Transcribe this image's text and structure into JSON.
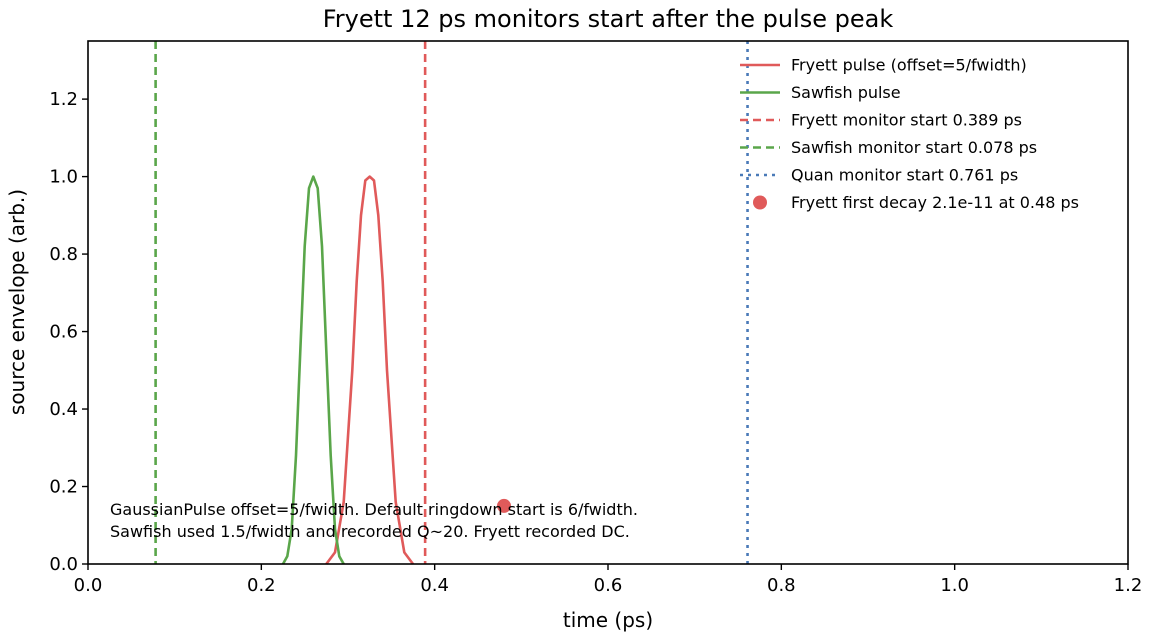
{
  "chart_data": {
    "type": "line",
    "title": "Fryett 12 ps monitors start after the pulse peak",
    "xlabel": "time (ps)",
    "ylabel": "source envelope (arb.)",
    "xlim": [
      0.0,
      1.2
    ],
    "ylim": [
      0.0,
      1.35
    ],
    "xticks": [
      0.0,
      0.2,
      0.4,
      0.6,
      0.8,
      1.0,
      1.2
    ],
    "yticks": [
      0.0,
      0.2,
      0.4,
      0.6,
      0.8,
      1.0,
      1.2
    ],
    "xtick_labels": [
      "0.0",
      "0.2",
      "0.4",
      "0.6",
      "0.8",
      "1.0",
      "1.2"
    ],
    "ytick_labels": [
      "0.0",
      "0.2",
      "0.4",
      "0.6",
      "0.8",
      "1.0",
      "1.2"
    ],
    "grid": false,
    "legend_position": "top-right",
    "series": [
      {
        "name": "Fryett pulse (offset=5/fwidth)",
        "kind": "line",
        "color": "#e05a5a",
        "x": [
          0.275,
          0.285,
          0.295,
          0.305,
          0.31,
          0.315,
          0.32,
          0.325,
          0.33,
          0.335,
          0.34,
          0.345,
          0.355,
          0.365,
          0.375
        ],
        "y": [
          0.0,
          0.03,
          0.16,
          0.5,
          0.73,
          0.9,
          0.99,
          1.0,
          0.99,
          0.9,
          0.73,
          0.5,
          0.16,
          0.03,
          0.0
        ]
      },
      {
        "name": "Sawfish pulse",
        "kind": "line",
        "color": "#5aa64a",
        "x": [
          0.225,
          0.23,
          0.235,
          0.24,
          0.245,
          0.25,
          0.255,
          0.26,
          0.265,
          0.27,
          0.275,
          0.28,
          0.285,
          0.29,
          0.295
        ],
        "y": [
          0.0,
          0.02,
          0.09,
          0.28,
          0.55,
          0.82,
          0.97,
          1.0,
          0.97,
          0.82,
          0.55,
          0.28,
          0.09,
          0.02,
          0.0
        ]
      },
      {
        "name": "Fryett monitor start 0.389 ps",
        "kind": "vline",
        "style": "dashed",
        "color": "#e05a5a",
        "x": 0.389
      },
      {
        "name": "Sawfish monitor start 0.078 ps",
        "kind": "vline",
        "style": "dashed",
        "color": "#5aa64a",
        "x": 0.078
      },
      {
        "name": "Quan monitor start 0.761 ps",
        "kind": "vline",
        "style": "dotted",
        "color": "#4a7ab8",
        "x": 0.761
      },
      {
        "name": "Fryett first decay 2.1e-11 at 0.48 ps",
        "kind": "point",
        "color": "#e05a5a",
        "x": 0.48,
        "y": 0.15
      }
    ],
    "annotations": [
      "GaussianPulse offset=5/fwidth. Default ringdown start is 6/fwidth.",
      "Sawfish used 1.5/fwidth and recorded Q~20. Fryett recorded DC."
    ]
  }
}
